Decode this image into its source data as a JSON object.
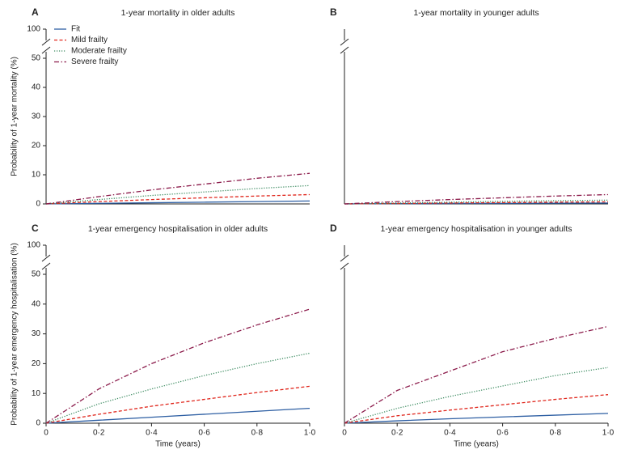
{
  "chart_data": [
    {
      "type": "line",
      "panel": "A",
      "title": "1-year mortality in older adults",
      "y_label": "Probability of 1-year mortality (%)",
      "x": [
        0,
        0.2,
        0.4,
        0.6,
        0.8,
        1.0
      ],
      "series": [
        {
          "name": "Fit",
          "color": "#2e5fa3",
          "dash": "solid",
          "values": [
            0,
            0.2,
            0.4,
            0.6,
            0.8,
            1.0
          ]
        },
        {
          "name": "Mild frailty",
          "color": "#e0261c",
          "dash": "dashed",
          "values": [
            0,
            0.8,
            1.5,
            2.1,
            2.7,
            3.2
          ]
        },
        {
          "name": "Moderate frailty",
          "color": "#3a8a5f",
          "dash": "dotted",
          "values": [
            0,
            1.5,
            2.9,
            4.1,
            5.3,
            6.3
          ]
        },
        {
          "name": "Severe frailty",
          "color": "#8b1a4a",
          "dash": "dashdot",
          "values": [
            0,
            2.5,
            4.8,
            6.8,
            8.8,
            10.5
          ]
        }
      ],
      "xlim": [
        0,
        1
      ],
      "ylim": [
        0,
        100
      ],
      "y_break": [
        50,
        100
      ],
      "yticks": [
        0,
        10,
        20,
        30,
        40,
        50,
        100
      ],
      "legend": "upper left"
    },
    {
      "type": "line",
      "panel": "B",
      "title": "1-year mortality in younger adults",
      "x": [
        0,
        0.2,
        0.4,
        0.6,
        0.8,
        1.0
      ],
      "series": [
        {
          "name": "Fit",
          "color": "#2e5fa3",
          "dash": "solid",
          "values": [
            0,
            0.1,
            0.15,
            0.2,
            0.25,
            0.3
          ]
        },
        {
          "name": "Mild frailty",
          "color": "#e0261c",
          "dash": "dashed",
          "values": [
            0,
            0.15,
            0.3,
            0.45,
            0.6,
            0.7
          ]
        },
        {
          "name": "Moderate frailty",
          "color": "#3a8a5f",
          "dash": "dotted",
          "values": [
            0,
            0.3,
            0.6,
            0.9,
            1.1,
            1.3
          ]
        },
        {
          "name": "Severe frailty",
          "color": "#8b1a4a",
          "dash": "dashdot",
          "values": [
            0,
            0.8,
            1.5,
            2.1,
            2.7,
            3.2
          ]
        }
      ],
      "xlim": [
        0,
        1
      ],
      "ylim": [
        0,
        100
      ],
      "y_break": [
        50,
        100
      ]
    },
    {
      "type": "line",
      "panel": "C",
      "title": "1-year emergency hospitalisation in older adults",
      "y_label": "Probability of 1-year emergency hospitalisation (%)",
      "x_label": "Time (years)",
      "x": [
        0,
        0.2,
        0.4,
        0.6,
        0.8,
        1.0
      ],
      "series": [
        {
          "name": "Fit",
          "color": "#2e5fa3",
          "dash": "solid",
          "values": [
            0,
            1,
            2,
            3,
            4,
            5
          ]
        },
        {
          "name": "Mild frailty",
          "color": "#e0261c",
          "dash": "dashed",
          "values": [
            0,
            3,
            5.7,
            8,
            10.3,
            12.4
          ]
        },
        {
          "name": "Moderate frailty",
          "color": "#3a8a5f",
          "dash": "dotted",
          "values": [
            0,
            6.5,
            11.5,
            16,
            20,
            23.5
          ]
        },
        {
          "name": "Severe frailty",
          "color": "#8b1a4a",
          "dash": "dashdot",
          "values": [
            0,
            11.5,
            20,
            27,
            33,
            38.3
          ]
        }
      ],
      "xlim": [
        0,
        1
      ],
      "ylim": [
        0,
        100
      ],
      "y_break": [
        50,
        100
      ],
      "yticks": [
        0,
        10,
        20,
        30,
        40,
        50,
        100
      ],
      "xticks": [
        0,
        {
          "value": 0.2,
          "label": "0·2"
        },
        {
          "value": 0.4,
          "label": "0·4"
        },
        {
          "value": 0.6,
          "label": "0·6"
        },
        {
          "value": 0.8,
          "label": "0·8"
        },
        {
          "value": 1.0,
          "label": "1·0"
        }
      ]
    },
    {
      "type": "line",
      "panel": "D",
      "title": "1-year emergency hospitalisation in younger adults",
      "x_label": "Time (years)",
      "x": [
        0,
        0.2,
        0.4,
        0.6,
        0.8,
        1.0
      ],
      "series": [
        {
          "name": "Fit",
          "color": "#2e5fa3",
          "dash": "solid",
          "values": [
            0,
            0.8,
            1.5,
            2.1,
            2.7,
            3.3
          ]
        },
        {
          "name": "Mild frailty",
          "color": "#e0261c",
          "dash": "dashed",
          "values": [
            0,
            2.5,
            4.4,
            6.2,
            8,
            9.6
          ]
        },
        {
          "name": "Moderate frailty",
          "color": "#3a8a5f",
          "dash": "dotted",
          "values": [
            0,
            5,
            9,
            12.5,
            16,
            18.7
          ]
        },
        {
          "name": "Severe frailty",
          "color": "#8b1a4a",
          "dash": "dashdot",
          "values": [
            0,
            11,
            17.5,
            24,
            28.5,
            32.5
          ]
        }
      ],
      "xlim": [
        0,
        1
      ],
      "ylim": [
        0,
        100
      ],
      "y_break": [
        50,
        100
      ],
      "xticks": [
        0,
        {
          "value": 0.2,
          "label": "0·2"
        },
        {
          "value": 0.4,
          "label": "0·4"
        },
        {
          "value": 0.6,
          "label": "0·6"
        },
        {
          "value": 0.8,
          "label": "0·8"
        },
        {
          "value": 1.0,
          "label": "1·0"
        }
      ]
    }
  ]
}
